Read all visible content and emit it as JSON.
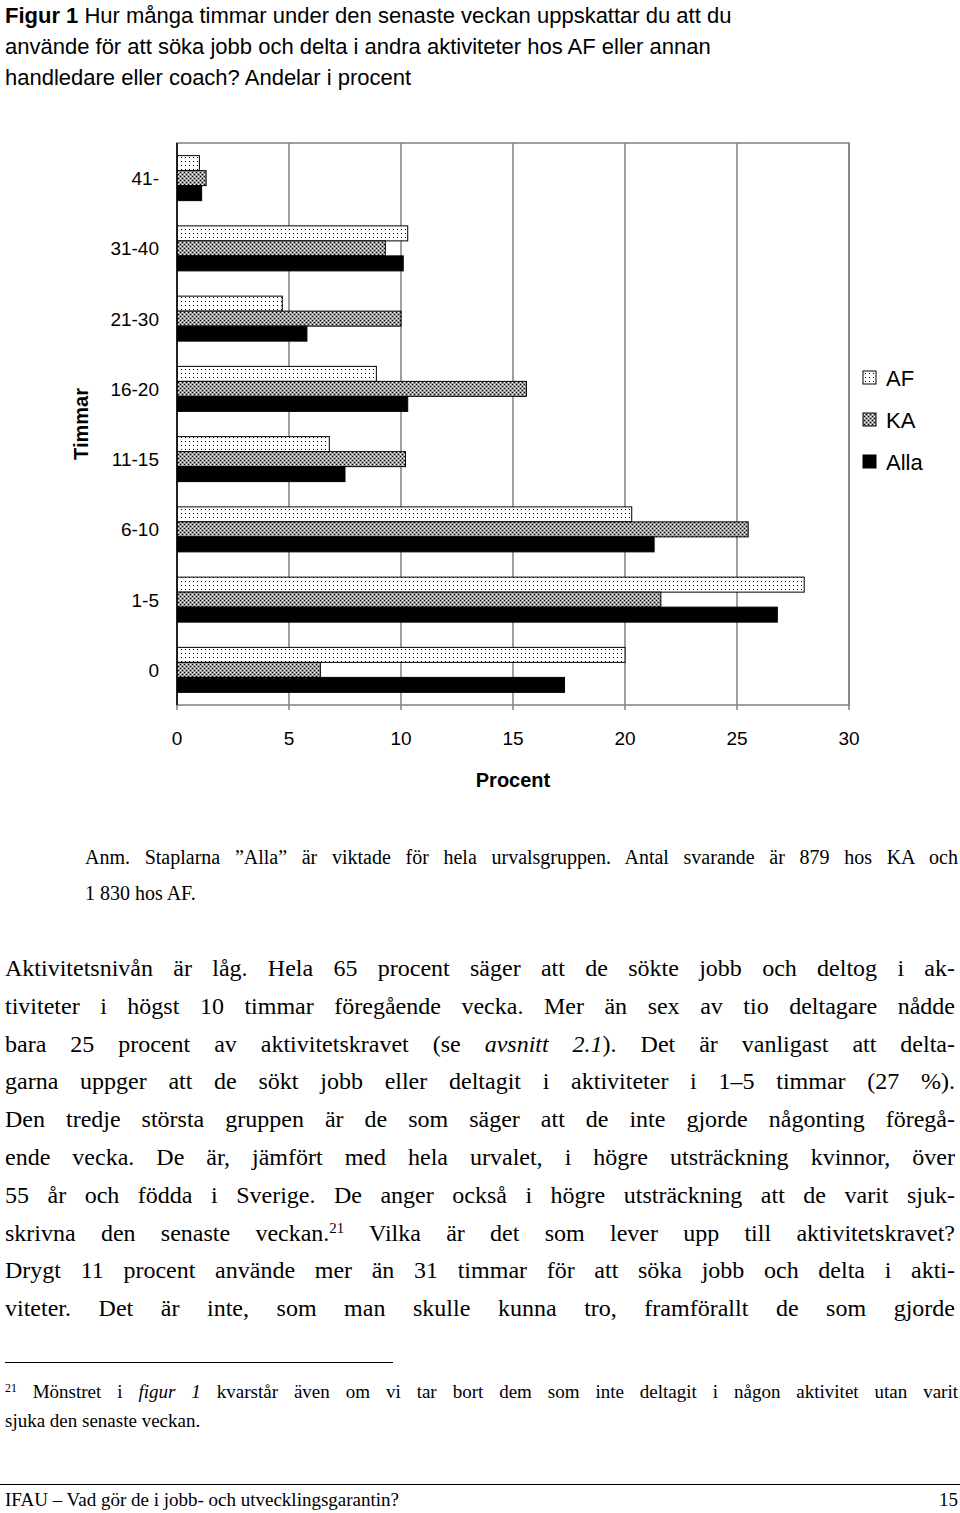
{
  "caption": {
    "label": "Figur 1",
    "lines": [
      "Hur många timmar under den senaste veckan uppskattar du att du",
      "använde för att söka jobb och delta i andra aktiviteter hos AF eller annan",
      "handledare eller coach? Andelar i procent"
    ]
  },
  "chart_data": {
    "type": "bar",
    "orientation": "horizontal",
    "categories": [
      "41-",
      "31-40",
      "21-30",
      "16-20",
      "11-15",
      "6-10",
      "1-5",
      "0"
    ],
    "series": [
      {
        "name": "AF",
        "color": "#ffffff",
        "values": [
          1.0,
          10.3,
          4.7,
          8.9,
          6.8,
          20.3,
          28.0,
          20.0
        ]
      },
      {
        "name": "KA",
        "color": "#9a9a9a",
        "values": [
          1.3,
          9.3,
          10.0,
          15.6,
          10.2,
          25.5,
          21.6,
          6.4
        ]
      },
      {
        "name": "Alla",
        "color": "#000000",
        "values": [
          1.1,
          10.1,
          5.8,
          10.3,
          7.5,
          21.3,
          26.8,
          17.3
        ]
      }
    ],
    "xlim": [
      0,
      30
    ],
    "xticks": [
      0,
      5,
      10,
      15,
      20,
      25,
      30
    ],
    "xlabel": "Procent",
    "ylabel": "Timmar",
    "grid": true,
    "legend": "right"
  },
  "note": {
    "lines": [
      "Anm. Staplarna ”Alla” är viktade för hela urvalsgruppen. Antal svarande är 879 hos KA och",
      "1 830 hos AF."
    ]
  },
  "body": {
    "lines": [
      [
        {
          "text": "Aktivitetsnivån är låg. Hela 65 procent säger att de sökte jobb och deltog i ak-"
        }
      ],
      [
        {
          "text": "tiviteter i högst 10 timmar föregående vecka. Mer än sex av tio deltagare nådde"
        }
      ],
      [
        {
          "text": "bara 25 procent av aktivitetskravet (se "
        },
        {
          "text": "avsnitt 2.1",
          "style": "italic"
        },
        {
          "text": "). Det är vanligast att delta-"
        }
      ],
      [
        {
          "text": "garna uppger att de sökt jobb eller deltagit i aktiviteter i 1–5 timmar (27 %)."
        }
      ],
      [
        {
          "text": "Den tredje största gruppen är de som säger att de inte gjorde någonting föregå-"
        }
      ],
      [
        {
          "text": "ende vecka. De är, jämfört med hela urvalet, i högre utsträckning kvinnor, över"
        }
      ],
      [
        {
          "text": "55 år och födda i Sverige. De anger också i högre utsträckning att de varit sjuk-"
        }
      ],
      [
        {
          "text": "skrivna den senaste veckan."
        },
        {
          "text": "21",
          "style": "sup"
        },
        {
          "text": " Vilka är det som lever upp till aktivitetskravet?"
        }
      ],
      [
        {
          "text": "Drygt 11 procent använde mer än 31 timmar för att söka jobb och delta i akti-"
        }
      ],
      [
        {
          "text": "viteter. Det är inte, som man skulle kunna tro, framförallt de som gjorde"
        }
      ]
    ]
  },
  "footnote": {
    "lines": [
      [
        {
          "text": "21",
          "style": "sup"
        },
        {
          "text": " Mönstret i "
        },
        {
          "text": "figur 1",
          "style": "italic"
        },
        {
          "text": " kvarstår även om vi tar bort dem som inte deltagit i någon aktivitet utan varit"
        }
      ],
      [
        {
          "text": "sjuka den senaste veckan."
        }
      ]
    ]
  },
  "footer": {
    "left": "IFAU – Vad gör de i jobb- och utvecklingsgarantin?",
    "right": "15"
  }
}
